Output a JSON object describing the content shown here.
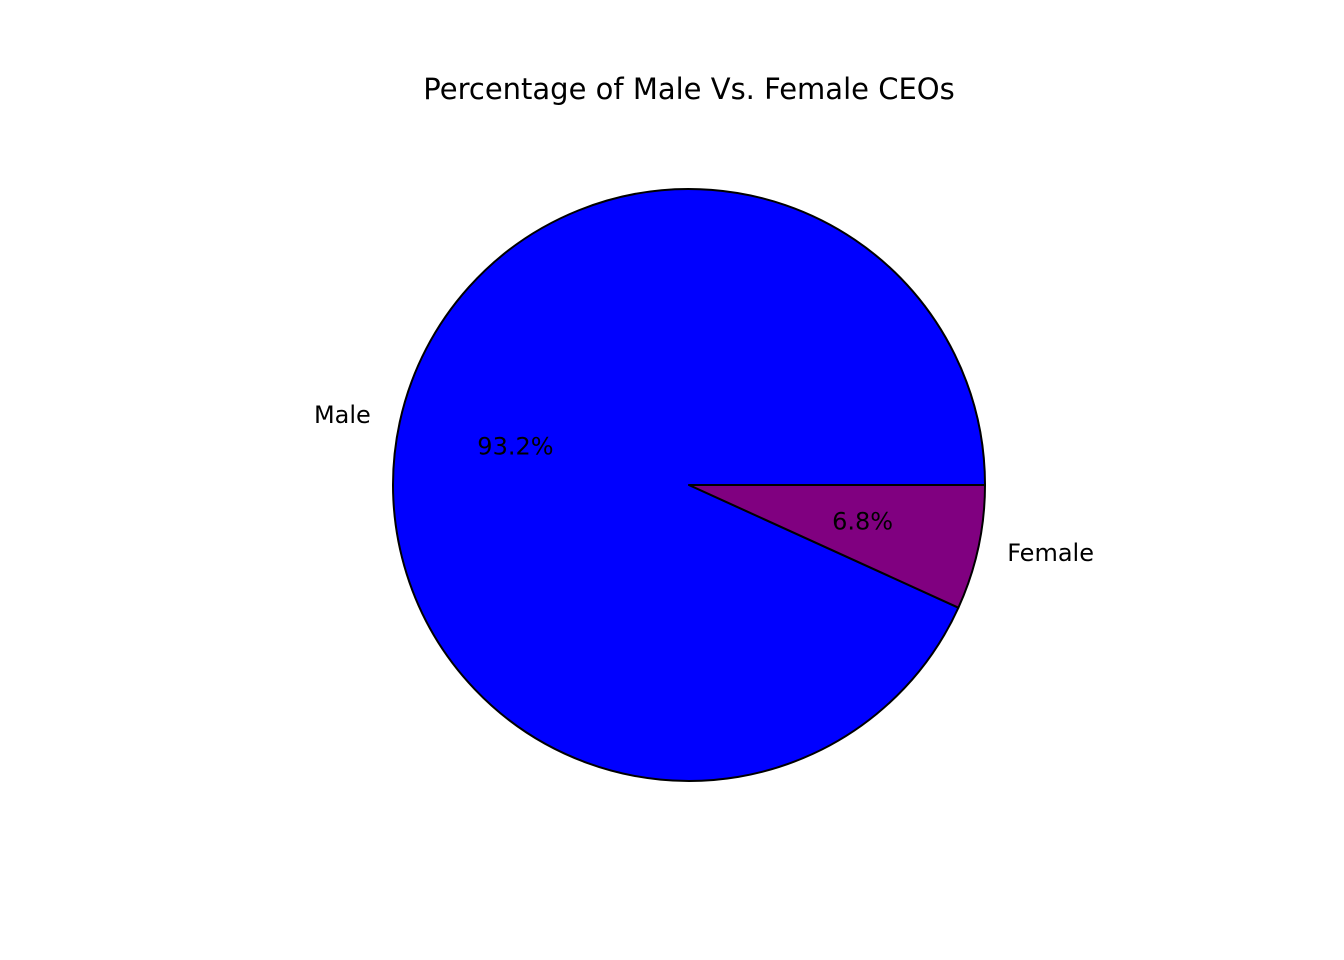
{
  "chart_data": {
    "type": "pie",
    "title": "Percentage of Male Vs. Female CEOs",
    "categories": [
      "Male",
      "Female"
    ],
    "values": [
      93.2,
      6.8
    ],
    "value_labels": [
      "93.2%",
      "6.8%"
    ],
    "colors": [
      "#0000ff",
      "#800080"
    ],
    "start_angle_deg": 0,
    "direction": "counterclockwise",
    "legend": "none",
    "labels_placement": "outside"
  }
}
